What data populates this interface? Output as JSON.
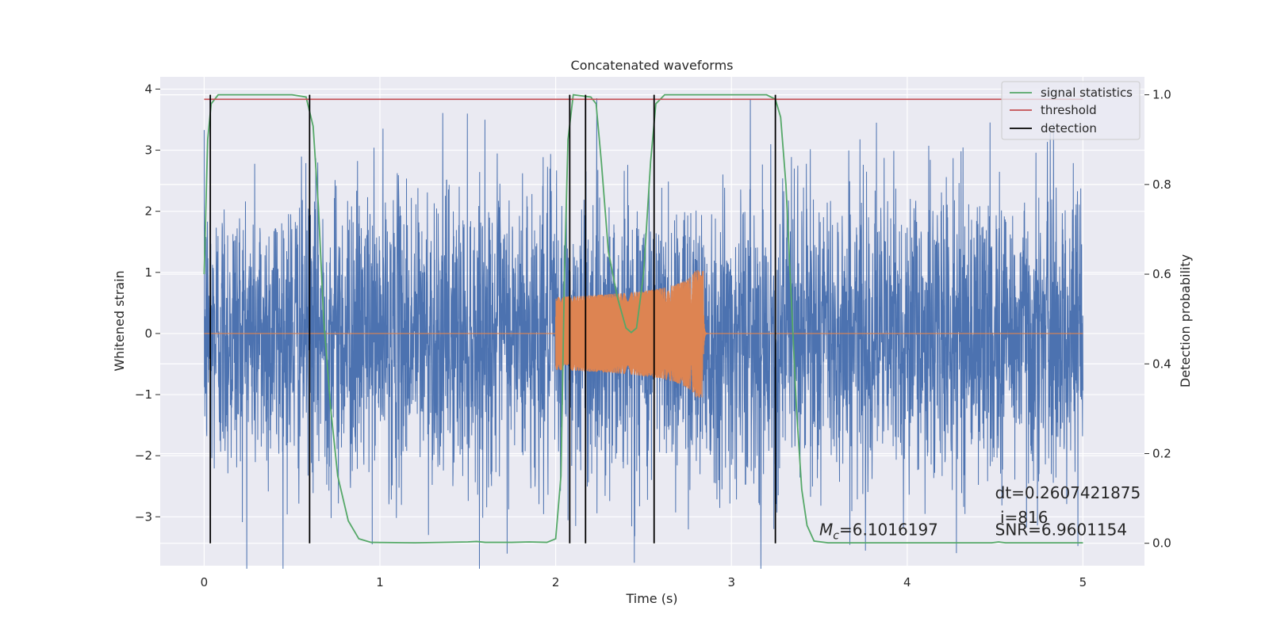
{
  "chart_data": {
    "type": "line",
    "title": "Concatenated waveforms",
    "xlabel": "Time (s)",
    "ylabel": "Whitened strain",
    "ylabel_right": "Detection probability",
    "xlim": [
      -0.25,
      5.35
    ],
    "ylim": [
      -3.8,
      4.2
    ],
    "ylim_right": [
      -0.05,
      1.04
    ],
    "x_ticks": [
      0,
      1,
      2,
      3,
      4,
      5
    ],
    "x_tick_labels": [
      "0",
      "1",
      "2",
      "3",
      "4",
      "5"
    ],
    "y_ticks": [
      -3,
      -2,
      -1,
      0,
      1,
      2,
      3,
      4
    ],
    "y_tick_labels": [
      "−3",
      "−2",
      "−1",
      "0",
      "1",
      "2",
      "3",
      "4"
    ],
    "y2_ticks": [
      0.0,
      0.2,
      0.4,
      0.6,
      0.8,
      1.0
    ],
    "y2_tick_labels": [
      "0.0",
      "0.2",
      "0.4",
      "0.6",
      "0.8",
      "1.0"
    ],
    "grid": true,
    "legend_position": "top-right",
    "legend": [
      {
        "label": "signal statistics",
        "color": "#55a868"
      },
      {
        "label": "threshold",
        "color": "#c44e52"
      },
      {
        "label": "detection",
        "color": "#000000"
      }
    ],
    "series": [
      {
        "role": "noise",
        "axis": "left",
        "color": "#4c72b0",
        "x_range": [
          0,
          5
        ],
        "amplitude_typical": 1.2,
        "amplitude_peak": 3.85
      },
      {
        "role": "injected signal",
        "axis": "left",
        "color": "#dd8452",
        "x_start": 2.0,
        "x_end": 2.84,
        "amp_start": 0.2,
        "amp_peak": 1.05
      },
      {
        "name": "signal statistics",
        "axis": "right",
        "color": "#55a868",
        "points": [
          [
            0,
            0.6
          ],
          [
            0.02,
            0.9
          ],
          [
            0.04,
            0.98
          ],
          [
            0.08,
            1.0
          ],
          [
            0.5,
            1.0
          ],
          [
            0.58,
            0.995
          ],
          [
            0.62,
            0.93
          ],
          [
            0.65,
            0.75
          ],
          [
            0.68,
            0.5
          ],
          [
            0.72,
            0.3
          ],
          [
            0.76,
            0.15
          ],
          [
            0.82,
            0.05
          ],
          [
            0.88,
            0.01
          ],
          [
            0.95,
            0.002
          ],
          [
            1.2,
            0.001
          ],
          [
            1.5,
            0.003
          ],
          [
            1.55,
            0.004
          ],
          [
            1.6,
            0.002
          ],
          [
            1.75,
            0.002
          ],
          [
            1.85,
            0.003
          ],
          [
            1.95,
            0.002
          ],
          [
            2.0,
            0.01
          ],
          [
            2.03,
            0.15
          ],
          [
            2.05,
            0.6
          ],
          [
            2.07,
            0.9
          ],
          [
            2.1,
            1.0
          ],
          [
            2.2,
            0.995
          ],
          [
            2.23,
            0.98
          ],
          [
            2.26,
            0.85
          ],
          [
            2.3,
            0.65
          ],
          [
            2.35,
            0.55
          ],
          [
            2.4,
            0.48
          ],
          [
            2.43,
            0.47
          ],
          [
            2.46,
            0.48
          ],
          [
            2.5,
            0.6
          ],
          [
            2.54,
            0.85
          ],
          [
            2.57,
            0.98
          ],
          [
            2.62,
            1.0
          ],
          [
            3.2,
            1.0
          ],
          [
            3.25,
            0.99
          ],
          [
            3.28,
            0.95
          ],
          [
            3.31,
            0.8
          ],
          [
            3.34,
            0.55
          ],
          [
            3.37,
            0.3
          ],
          [
            3.4,
            0.12
          ],
          [
            3.43,
            0.04
          ],
          [
            3.47,
            0.005
          ],
          [
            3.55,
            0.001
          ],
          [
            4.48,
            0.001
          ],
          [
            4.52,
            0.003
          ],
          [
            4.56,
            0.001
          ],
          [
            5.0,
            0.001
          ]
        ]
      },
      {
        "name": "threshold",
        "axis": "right",
        "color": "#c44e52",
        "x": [
          0,
          5
        ],
        "y": 0.99
      },
      {
        "name": "detection",
        "axis": "right",
        "color": "#000000",
        "x": [
          0.035,
          0.6,
          2.08,
          2.17,
          2.56,
          3.25
        ],
        "y_range": [
          0.0,
          1.0
        ]
      }
    ],
    "annotations": [
      {
        "prefix": "M",
        "subscript": "c",
        "rest": "=6.1016197",
        "x": 3.5,
        "y": -3.3
      },
      {
        "text": "dt=0.2607421875",
        "x": 4.5,
        "y": -2.7
      },
      {
        "text": " i=816",
        "x": 4.5,
        "y": -3.1
      },
      {
        "text": "SNR=6.9601154",
        "x": 4.5,
        "y": -3.3
      }
    ]
  }
}
